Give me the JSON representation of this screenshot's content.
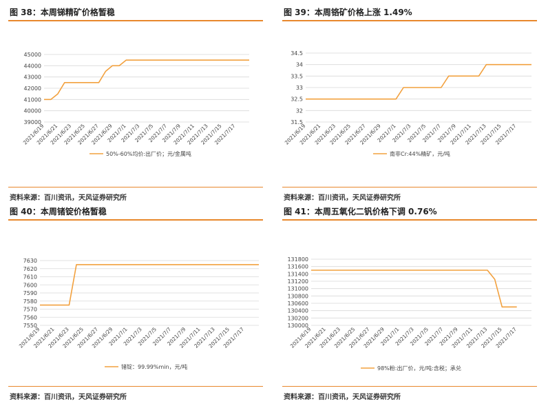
{
  "panels": [
    {
      "title": "图 38：本周锑精矿价格暂稳",
      "source": "资料来源：百川资讯，天风证券研究所"
    },
    {
      "title": "图 39：本周铬矿价格上涨 1.49%",
      "source": "资料来源：百川资讯，天风证券研究所"
    },
    {
      "title": "图 40：本周锗锭价格暂稳",
      "source": "资料来源：百川资讯，天风证券研究所"
    },
    {
      "title": "图 41：本周五氧化二钒价格下调 0.76%",
      "source": "资料来源：百川资讯，天风证券研究所"
    }
  ],
  "colors": {
    "accent": "#e8872b",
    "line": "#f2a03d",
    "grid": "#d9d9d9"
  },
  "chart_data": [
    {
      "type": "line",
      "title": "图 38：本周锑精矿价格暂稳",
      "x_ticks": [
        "2021/6/19",
        "2021/6/21",
        "2021/6/23",
        "2021/6/25",
        "2021/6/27",
        "2021/6/29",
        "2021/7/1",
        "2021/7/3",
        "2021/7/5",
        "2021/7/7",
        "2021/7/9",
        "2021/7/11",
        "2021/7/13",
        "2021/7/15",
        "2021/7/17"
      ],
      "y_ticks": [
        39000,
        40000,
        41000,
        42000,
        43000,
        44000,
        45000
      ],
      "ylim": [
        39000,
        45000
      ],
      "xlim": [
        "2021/6/19",
        "2021/7/19"
      ],
      "grid": "horizontal",
      "legend": "bottom",
      "series": [
        {
          "name": "50%-60%均价:出厂价；元/金属吨",
          "points": [
            [
              "2021/6/19",
              41000
            ],
            [
              "2021/6/20",
              41000
            ],
            [
              "2021/6/21",
              41500
            ],
            [
              "2021/6/22",
              42500
            ],
            [
              "2021/6/23",
              42500
            ],
            [
              "2021/6/24",
              42500
            ],
            [
              "2021/6/25",
              42500
            ],
            [
              "2021/6/26",
              42500
            ],
            [
              "2021/6/27",
              42500
            ],
            [
              "2021/6/28",
              43500
            ],
            [
              "2021/6/29",
              44000
            ],
            [
              "2021/6/30",
              44000
            ],
            [
              "2021/7/1",
              44500
            ],
            [
              "2021/7/19",
              44500
            ]
          ]
        }
      ]
    },
    {
      "type": "line",
      "title": "图 39：本周铬矿价格上涨 1.49%",
      "x_ticks": [
        "2021/6/19",
        "2021/6/21",
        "2021/6/23",
        "2021/6/25",
        "2021/6/27",
        "2021/6/29",
        "2021/7/1",
        "2021/7/3",
        "2021/7/5",
        "2021/7/7",
        "2021/7/9",
        "2021/7/11",
        "2021/7/13",
        "2021/7/15",
        "2021/7/17"
      ],
      "y_ticks": [
        31.5,
        32,
        32.5,
        33,
        33.5,
        34,
        34.5
      ],
      "y_tick_labels": [
        "31.5",
        "32",
        "32.5",
        "33",
        "33.5",
        "34",
        "34.5"
      ],
      "ylim": [
        31.5,
        34.5
      ],
      "xlim": [
        "2021/6/19",
        "2021/7/19"
      ],
      "grid": "horizontal",
      "legend": "bottom",
      "series": [
        {
          "name": "南非Cr:44%精矿，元/吨",
          "points": [
            [
              "2021/6/19",
              32.5
            ],
            [
              "2021/7/1",
              32.5
            ],
            [
              "2021/7/2",
              33
            ],
            [
              "2021/7/7",
              33
            ],
            [
              "2021/7/8",
              33.5
            ],
            [
              "2021/7/12",
              33.5
            ],
            [
              "2021/7/13",
              34
            ],
            [
              "2021/7/19",
              34
            ]
          ]
        }
      ]
    },
    {
      "type": "line",
      "title": "图 40：本周锗锭价格暂稳",
      "x_ticks": [
        "2021/6/19",
        "2021/6/21",
        "2021/6/23",
        "2021/6/25",
        "2021/6/27",
        "2021/6/29",
        "2021/7/1",
        "2021/7/3",
        "2021/7/5",
        "2021/7/7",
        "2021/7/9",
        "2021/7/11",
        "2021/7/13",
        "2021/7/15",
        "2021/7/17"
      ],
      "y_ticks": [
        7550,
        7560,
        7570,
        7580,
        7590,
        7600,
        7610,
        7620,
        7630
      ],
      "ylim": [
        7550,
        7630
      ],
      "xlim": [
        "2021/6/19",
        "2021/7/19"
      ],
      "grid": "horizontal",
      "legend": "bottom",
      "series": [
        {
          "name": "锗锭：99.99%min，元/吨",
          "points": [
            [
              "2021/6/19",
              7575
            ],
            [
              "2021/6/23",
              7575
            ],
            [
              "2021/6/24",
              7625
            ],
            [
              "2021/7/19",
              7625
            ]
          ]
        }
      ]
    },
    {
      "type": "line",
      "title": "图 41：本周五氧化二钒价格下调 0.76%",
      "x_ticks": [
        "2021/6/19",
        "2021/6/21",
        "2021/6/23",
        "2021/6/25",
        "2021/6/27",
        "2021/6/29",
        "2021/7/1",
        "2021/7/3",
        "2021/7/5",
        "2021/7/7",
        "2021/7/9",
        "2021/7/11",
        "2021/7/13",
        "2021/7/15",
        "2021/7/17"
      ],
      "y_ticks": [
        130000,
        130200,
        130400,
        130600,
        130800,
        131000,
        131200,
        131400,
        131600,
        131800
      ],
      "ylim": [
        130000,
        131800
      ],
      "xlim": [
        "2021/6/19",
        "2021/7/19"
      ],
      "grid": "horizontal",
      "legend": "bottom",
      "series": [
        {
          "name": "98%粉:出厂价，元/吨:含税；承兑",
          "points": [
            [
              "2021/6/19",
              131500
            ],
            [
              "2021/7/13",
              131500
            ],
            [
              "2021/7/14",
              131250
            ],
            [
              "2021/7/15",
              130500
            ],
            [
              "2021/7/17",
              130500
            ]
          ]
        }
      ]
    }
  ]
}
